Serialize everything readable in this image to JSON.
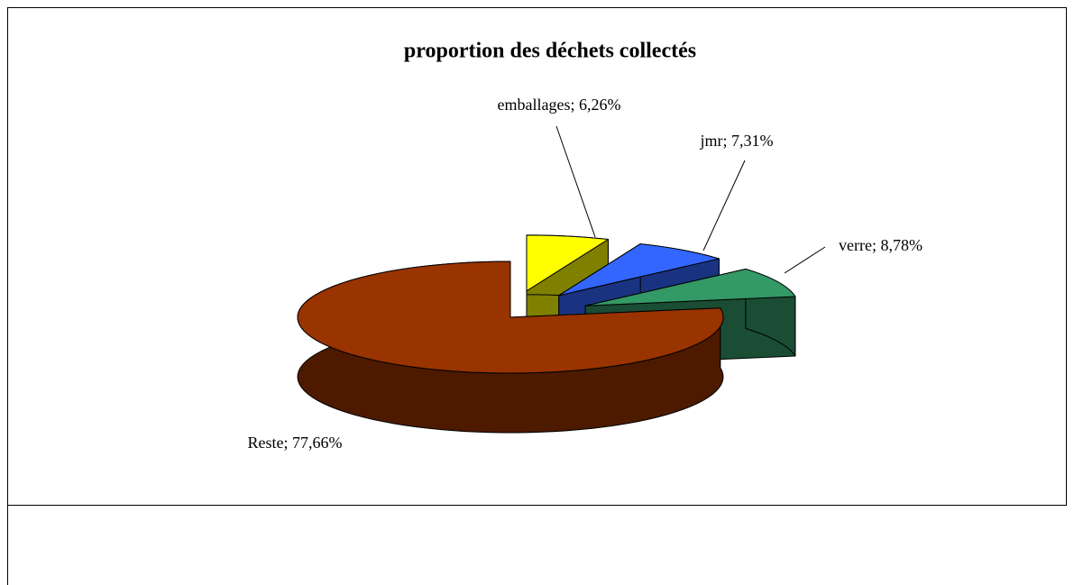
{
  "chart_data": {
    "type": "pie3d",
    "title": "proportion des déchets collectés",
    "values": [
      6.26,
      7.31,
      8.78,
      77.66
    ],
    "value_labels": [
      "emballages; 6,26%",
      "jmr; 7,31%",
      "verre; 8,78%",
      "Reste; 77,66%"
    ],
    "colors": [
      "#ffff00",
      "#3366ff",
      "#339966",
      "#993300"
    ],
    "exploded": [
      true,
      true,
      true,
      false
    ]
  }
}
